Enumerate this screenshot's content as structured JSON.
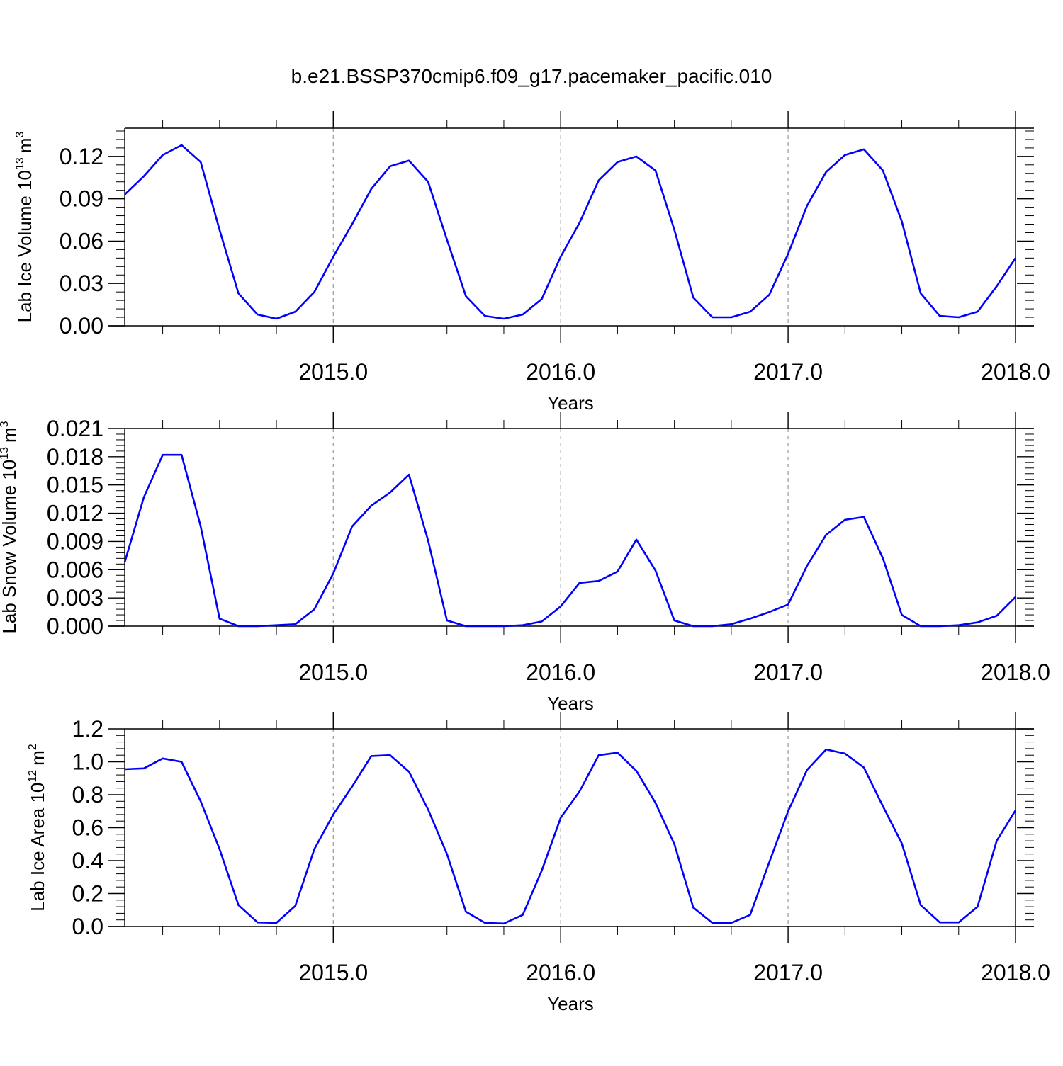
{
  "title": "b.e21.BSSP370cmip6.f09_g17.pacemaker_pacific.010",
  "line_color": "#0000ff",
  "grid_color": "#999999",
  "chart_data": [
    {
      "type": "line",
      "ylabel": "Lab Ice Volume 10",
      "ylabel_exp": "13",
      "ylabel_unit": "m",
      "ylabel_unit_exp": "3",
      "xlabel": "Years",
      "xlim": [
        2014.083,
        2018.0
      ],
      "ylim": [
        0.0,
        0.14
      ],
      "yticks": [
        0.0,
        0.03,
        0.06,
        0.09,
        0.12
      ],
      "ytick_labels": [
        "0.00",
        "0.03",
        "0.06",
        "0.09",
        "0.12"
      ],
      "xticks": [
        2015.0,
        2016.0,
        2017.0,
        2018.0
      ],
      "xtick_labels": [
        "2015.0",
        "2016.0",
        "2017.0",
        "2018.0"
      ],
      "grid": "vertical dashed at major x ticks",
      "x": [
        2014.083,
        2014.167,
        2014.25,
        2014.333,
        2014.417,
        2014.5,
        2014.583,
        2014.667,
        2014.75,
        2014.833,
        2014.917,
        2015.0,
        2015.083,
        2015.167,
        2015.25,
        2015.333,
        2015.417,
        2015.5,
        2015.583,
        2015.667,
        2015.75,
        2015.833,
        2015.917,
        2016.0,
        2016.083,
        2016.167,
        2016.25,
        2016.333,
        2016.417,
        2016.5,
        2016.583,
        2016.667,
        2016.75,
        2016.833,
        2016.917,
        2017.0,
        2017.083,
        2017.167,
        2017.25,
        2017.333,
        2017.417,
        2017.5,
        2017.583,
        2017.667,
        2017.75,
        2017.833,
        2017.917,
        2018.0
      ],
      "series": [
        {
          "values": [
            0.093,
            0.106,
            0.121,
            0.128,
            0.116,
            0.068,
            0.023,
            0.008,
            0.005,
            0.01,
            0.024,
            0.049,
            0.072,
            0.097,
            0.113,
            0.117,
            0.102,
            0.061,
            0.021,
            0.007,
            0.005,
            0.008,
            0.019,
            0.049,
            0.073,
            0.103,
            0.116,
            0.12,
            0.11,
            0.068,
            0.02,
            0.006,
            0.006,
            0.01,
            0.022,
            0.051,
            0.085,
            0.109,
            0.121,
            0.125,
            0.11,
            0.074,
            0.023,
            0.007,
            0.006,
            0.01,
            0.028,
            0.048
          ]
        }
      ]
    },
    {
      "type": "line",
      "ylabel": "Lab Snow Volume 10",
      "ylabel_exp": "13",
      "ylabel_unit": "m",
      "ylabel_unit_exp": "3",
      "xlabel": "Years",
      "xlim": [
        2014.083,
        2018.0
      ],
      "ylim": [
        0.0,
        0.021
      ],
      "yticks": [
        0.0,
        0.003,
        0.006,
        0.009,
        0.012,
        0.015,
        0.018,
        0.021
      ],
      "ytick_labels": [
        "0.000",
        "0.003",
        "0.006",
        "0.009",
        "0.012",
        "0.015",
        "0.018",
        "0.021"
      ],
      "xticks": [
        2015.0,
        2016.0,
        2017.0,
        2018.0
      ],
      "xtick_labels": [
        "2015.0",
        "2016.0",
        "2017.0",
        "2018.0"
      ],
      "grid": "vertical dashed at major x ticks",
      "x": [
        2014.083,
        2014.167,
        2014.25,
        2014.333,
        2014.417,
        2014.5,
        2014.583,
        2014.667,
        2014.75,
        2014.833,
        2014.917,
        2015.0,
        2015.083,
        2015.167,
        2015.25,
        2015.333,
        2015.417,
        2015.5,
        2015.583,
        2015.667,
        2015.75,
        2015.833,
        2015.917,
        2016.0,
        2016.083,
        2016.167,
        2016.25,
        2016.333,
        2016.417,
        2016.5,
        2016.583,
        2016.667,
        2016.75,
        2016.833,
        2016.917,
        2017.0,
        2017.083,
        2017.167,
        2017.25,
        2017.333,
        2017.417,
        2017.5,
        2017.583,
        2017.667,
        2017.75,
        2017.833,
        2017.917,
        2018.0
      ],
      "series": [
        {
          "values": [
            0.0068,
            0.0137,
            0.0182,
            0.0182,
            0.0106,
            0.0008,
            0.0,
            0.0,
            0.0001,
            0.0002,
            0.0018,
            0.0056,
            0.0106,
            0.0128,
            0.0142,
            0.0161,
            0.0091,
            0.0006,
            0.0,
            0.0,
            0.0,
            0.0001,
            0.0005,
            0.0021,
            0.0046,
            0.0048,
            0.0058,
            0.0092,
            0.0059,
            0.0006,
            0.0,
            0.0,
            0.0002,
            0.0008,
            0.0015,
            0.0023,
            0.0064,
            0.0097,
            0.0113,
            0.0116,
            0.0072,
            0.0012,
            0.0,
            0.0,
            0.0001,
            0.0004,
            0.0011,
            0.0031
          ]
        }
      ]
    },
    {
      "type": "line",
      "ylabel": "Lab Ice Area 10",
      "ylabel_exp": "12",
      "ylabel_unit": "m",
      "ylabel_unit_exp": "2",
      "xlabel": "Years",
      "xlim": [
        2014.083,
        2018.0
      ],
      "ylim": [
        0.0,
        1.2
      ],
      "yticks": [
        0.0,
        0.2,
        0.4,
        0.6,
        0.8,
        1.0,
        1.2
      ],
      "ytick_labels": [
        "0.0",
        "0.2",
        "0.4",
        "0.6",
        "0.8",
        "1.0",
        "1.2"
      ],
      "xticks": [
        2015.0,
        2016.0,
        2017.0,
        2018.0
      ],
      "xtick_labels": [
        "2015.0",
        "2016.0",
        "2017.0",
        "2018.0"
      ],
      "grid": "vertical dashed at major x ticks",
      "x": [
        2014.083,
        2014.167,
        2014.25,
        2014.333,
        2014.417,
        2014.5,
        2014.583,
        2014.667,
        2014.75,
        2014.833,
        2014.917,
        2015.0,
        2015.083,
        2015.167,
        2015.25,
        2015.333,
        2015.417,
        2015.5,
        2015.583,
        2015.667,
        2015.75,
        2015.833,
        2015.917,
        2016.0,
        2016.083,
        2016.167,
        2016.25,
        2016.333,
        2016.417,
        2016.5,
        2016.583,
        2016.667,
        2016.75,
        2016.833,
        2016.917,
        2017.0,
        2017.083,
        2017.167,
        2017.25,
        2017.333,
        2017.417,
        2017.5,
        2017.583,
        2017.667,
        2017.75,
        2017.833,
        2017.917,
        2018.0
      ],
      "series": [
        {
          "values": [
            0.955,
            0.96,
            1.02,
            1.0,
            0.76,
            0.47,
            0.13,
            0.025,
            0.022,
            0.125,
            0.47,
            0.68,
            0.85,
            1.035,
            1.04,
            0.94,
            0.71,
            0.44,
            0.09,
            0.022,
            0.018,
            0.07,
            0.34,
            0.66,
            0.82,
            1.04,
            1.055,
            0.945,
            0.75,
            0.5,
            0.115,
            0.022,
            0.022,
            0.07,
            0.39,
            0.7,
            0.95,
            1.075,
            1.05,
            0.965,
            0.73,
            0.505,
            0.13,
            0.025,
            0.025,
            0.12,
            0.52,
            0.705
          ]
        }
      ]
    }
  ]
}
